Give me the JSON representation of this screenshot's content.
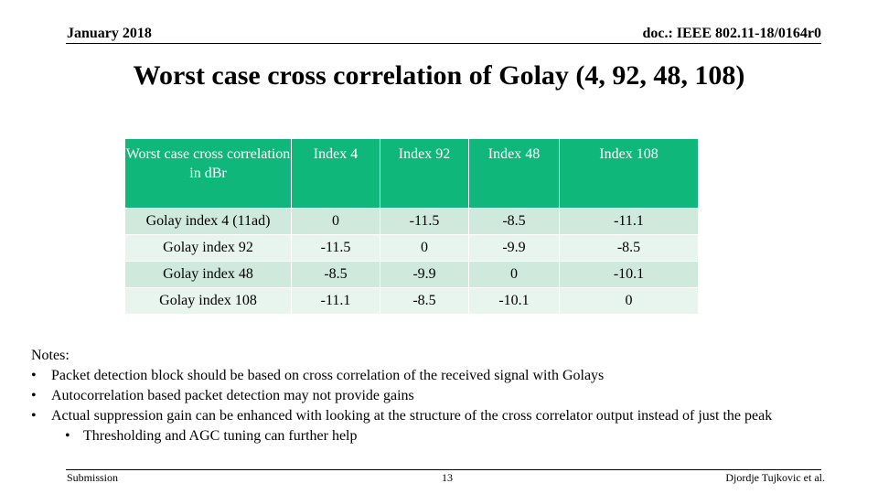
{
  "header": {
    "date": "January 2018",
    "doc": "doc.: IEEE 802.11-18/0164r0"
  },
  "title": "Worst case cross correlation of Golay (4, 92, 48, 108)",
  "table": {
    "headers": [
      "Worst case cross correlation in dBr",
      "Index 4",
      "Index 92",
      "Index 48",
      "Index 108"
    ],
    "rows": [
      [
        "Golay index 4 (11ad)",
        "0",
        "-11.5",
        "-8.5",
        "-11.1"
      ],
      [
        "Golay index 92",
        "-11.5",
        "0",
        "-9.9",
        "-8.5"
      ],
      [
        "Golay index 48",
        "-8.5",
        "-9.9",
        "0",
        "-10.1"
      ],
      [
        "Golay index 108",
        "-11.1",
        "-8.5",
        "-10.1",
        "0"
      ]
    ]
  },
  "notes": {
    "heading": "Notes:",
    "bullets": [
      "Packet detection block should be based on cross correlation of the received signal with Golays",
      "Autocorrelation based packet detection may not provide gains",
      "Actual suppression gain can be enhanced with looking at the structure of the cross correlator output instead of just the peak"
    ],
    "sub_bullets": [
      "Thresholding and AGC tuning can further help"
    ]
  },
  "footer": {
    "left": "Submission",
    "page": "13",
    "author": "Djordje Tujkovic et al."
  }
}
